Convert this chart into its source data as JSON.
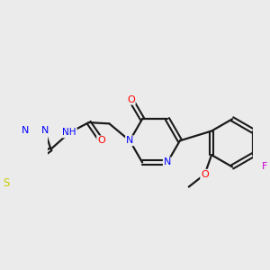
{
  "background_color": "#ebebeb",
  "atom_colors": {
    "C": "#1a1a1a",
    "N": "#0000ff",
    "O": "#ff0000",
    "S": "#cccc00",
    "F": "#cc00cc",
    "H": "#2e8b8b"
  },
  "figsize": [
    3.0,
    3.0
  ],
  "dpi": 100
}
